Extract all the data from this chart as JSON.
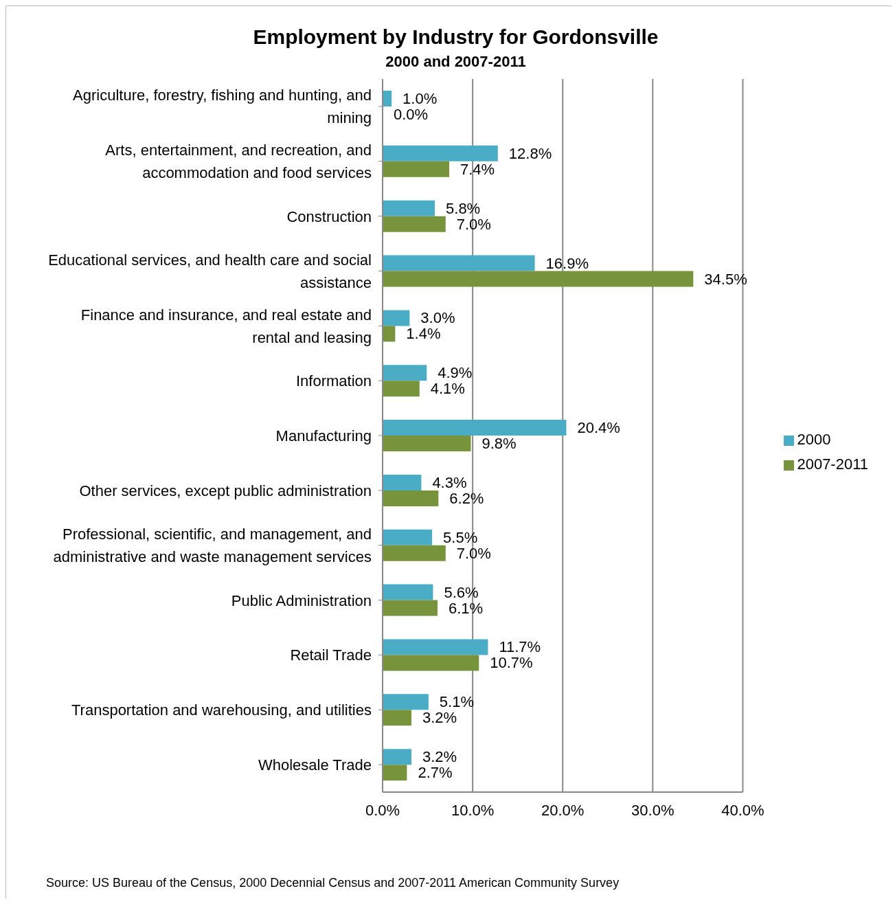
{
  "chart_data": {
    "type": "bar",
    "orientation": "horizontal",
    "title": "Employment by Industry for Gordonsville",
    "subtitle": "2000 and 2007-2011",
    "categories": [
      "Agriculture, forestry, fishing and hunting, and mining",
      "Arts, entertainment, and recreation, and accommodation and food services",
      "Construction",
      "Educational services, and health care and social assistance",
      "Finance and insurance, and real estate and rental and leasing",
      "Information",
      "Manufacturing",
      "Other services, except public administration",
      "Professional, scientific, and management, and administrative and waste management services",
      "Public Administration",
      "Retail Trade",
      "Transportation and warehousing, and utilities",
      "Wholesale Trade"
    ],
    "series": [
      {
        "name": "2000",
        "color": "#4bacc6",
        "values": [
          1.0,
          12.8,
          5.8,
          16.9,
          3.0,
          4.9,
          20.4,
          4.3,
          5.5,
          5.6,
          11.7,
          5.1,
          3.2
        ],
        "value_labels": [
          "1.0%",
          "12.8%",
          "5.8%",
          "16.9%",
          "3.0%",
          "4.9%",
          "20.4%",
          "4.3%",
          "5.5%",
          "5.6%",
          "11.7%",
          "5.1%",
          "3.2%"
        ]
      },
      {
        "name": "2007-2011",
        "color": "#77933c",
        "values": [
          0.0,
          7.4,
          7.0,
          34.5,
          1.4,
          4.1,
          9.8,
          6.2,
          7.0,
          6.1,
          10.7,
          3.2,
          2.7
        ],
        "value_labels": [
          "0.0%",
          "7.4%",
          "7.0%",
          "34.5%",
          "1.4%",
          "4.1%",
          "9.8%",
          "6.2%",
          "7.0%",
          "6.1%",
          "10.7%",
          "3.2%",
          "2.7%"
        ]
      }
    ],
    "xlim": [
      0,
      40
    ],
    "xticks": [
      {
        "value": 0,
        "label": "0.0%"
      },
      {
        "value": 10,
        "label": "10.0%"
      },
      {
        "value": 20,
        "label": "20.0%"
      },
      {
        "value": 30,
        "label": "30.0%"
      },
      {
        "value": 40,
        "label": "40.0%"
      }
    ],
    "grid": "x",
    "legend": "right",
    "annotations": [
      "Source: US Bureau of the Census, 2000 Decennial Census and 2007-2011 American Community Survey"
    ]
  }
}
